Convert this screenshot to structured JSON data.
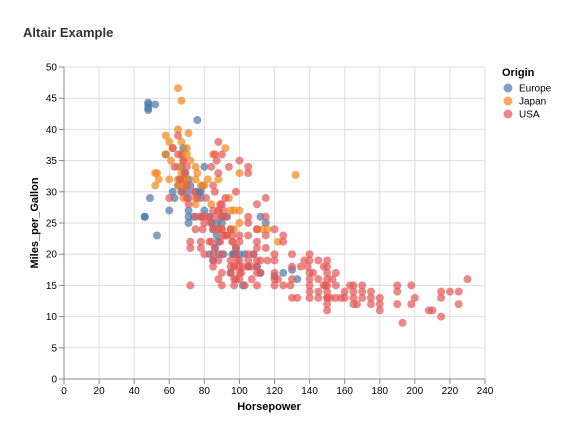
{
  "chart_data": {
    "type": "scatter",
    "title": "Altair Example",
    "xlabel": "Horsepower",
    "ylabel": "Miles_per_Gallon",
    "xlim": [
      0,
      240
    ],
    "ylim": [
      0,
      50
    ],
    "x_ticks": [
      0,
      20,
      40,
      60,
      80,
      100,
      120,
      140,
      160,
      180,
      200,
      220,
      240
    ],
    "y_ticks": [
      0,
      5,
      10,
      15,
      20,
      25,
      30,
      35,
      40,
      45,
      50
    ],
    "grid": true,
    "legend": {
      "title": "Origin",
      "position": "top-right"
    },
    "series": [
      {
        "name": "Europe",
        "color": "#4c78a8",
        "points": [
          [
            46,
            26
          ],
          [
            46,
            26
          ],
          [
            48,
            43.1
          ],
          [
            48,
            43.4
          ],
          [
            48,
            44.3
          ],
          [
            48,
            44
          ],
          [
            49,
            29
          ],
          [
            52,
            44
          ],
          [
            53,
            23
          ],
          [
            58,
            36
          ],
          [
            60,
            27
          ],
          [
            62,
            30
          ],
          [
            63,
            29
          ],
          [
            65,
            31
          ],
          [
            67,
            32
          ],
          [
            67,
            30
          ],
          [
            67,
            34
          ],
          [
            67,
            36
          ],
          [
            68,
            37
          ],
          [
            69,
            33
          ],
          [
            70,
            30
          ],
          [
            71,
            32
          ],
          [
            71,
            29
          ],
          [
            71,
            25
          ],
          [
            71,
            26
          ],
          [
            71,
            27
          ],
          [
            72,
            31
          ],
          [
            74,
            26
          ],
          [
            75,
            30
          ],
          [
            76,
            41.5
          ],
          [
            77,
            30
          ],
          [
            78,
            26
          ],
          [
            78,
            30
          ],
          [
            78,
            29
          ],
          [
            79,
            31
          ],
          [
            80,
            34
          ],
          [
            80,
            27
          ],
          [
            83,
            26
          ],
          [
            83,
            20
          ],
          [
            84,
            25
          ],
          [
            85,
            24
          ],
          [
            85,
            19
          ],
          [
            86,
            21
          ],
          [
            87,
            23
          ],
          [
            87,
            25
          ],
          [
            88,
            22
          ],
          [
            88,
            20
          ],
          [
            90,
            26
          ],
          [
            90,
            25
          ],
          [
            91,
            20
          ],
          [
            93,
            26
          ],
          [
            95,
            17
          ],
          [
            96,
            20
          ],
          [
            97,
            20
          ],
          [
            98,
            21
          ],
          [
            100,
            20
          ],
          [
            102,
            15
          ],
          [
            103,
            20
          ],
          [
            105,
            18
          ],
          [
            108,
            20
          ],
          [
            110,
            18
          ],
          [
            112,
            17
          ],
          [
            112,
            26
          ],
          [
            115,
            25
          ],
          [
            120,
            16.5
          ],
          [
            125,
            17
          ],
          [
            130,
            17.5
          ],
          [
            133,
            16
          ]
        ]
      },
      {
        "name": "Japan",
        "color": "#f58518",
        "points": [
          [
            52,
            31
          ],
          [
            52,
            33
          ],
          [
            53,
            33
          ],
          [
            54,
            32
          ],
          [
            58,
            36
          ],
          [
            58,
            39
          ],
          [
            60,
            38
          ],
          [
            60,
            32
          ],
          [
            61,
            35
          ],
          [
            62,
            37
          ],
          [
            65,
            46.6
          ],
          [
            65,
            40
          ],
          [
            65,
            32
          ],
          [
            65,
            34
          ],
          [
            65,
            31
          ],
          [
            67,
            38
          ],
          [
            67,
            44.6
          ],
          [
            67,
            36
          ],
          [
            67,
            33
          ],
          [
            68,
            32
          ],
          [
            68,
            29
          ],
          [
            68,
            31
          ],
          [
            68,
            35
          ],
          [
            69,
            31
          ],
          [
            70,
            36
          ],
          [
            70,
            32
          ],
          [
            70,
            37
          ],
          [
            71,
            39.4
          ],
          [
            72,
            35
          ],
          [
            75,
            32
          ],
          [
            75,
            29
          ],
          [
            75,
            28
          ],
          [
            75,
            34
          ],
          [
            76,
            33
          ],
          [
            78,
            31
          ],
          [
            80,
            31
          ],
          [
            82,
            32
          ],
          [
            84,
            28
          ],
          [
            85,
            36
          ],
          [
            88,
            32
          ],
          [
            88,
            27
          ],
          [
            88,
            24
          ],
          [
            90,
            24
          ],
          [
            92,
            37
          ],
          [
            94,
            29
          ],
          [
            95,
            27
          ],
          [
            95,
            24
          ],
          [
            96,
            22
          ],
          [
            97,
            27
          ],
          [
            97,
            24
          ],
          [
            97,
            18
          ],
          [
            100,
            27
          ],
          [
            100,
            25
          ],
          [
            100,
            33
          ],
          [
            110,
            24
          ],
          [
            113,
            24
          ],
          [
            116,
            24
          ],
          [
            122,
            22
          ],
          [
            132,
            32.7
          ]
        ]
      },
      {
        "name": "USA",
        "color": "#e45756",
        "points": [
          [
            60,
            29
          ],
          [
            62,
            37
          ],
          [
            63,
            34
          ],
          [
            65,
            39
          ],
          [
            65,
            36
          ],
          [
            66,
            32
          ],
          [
            67,
            30
          ],
          [
            68,
            35
          ],
          [
            69,
            33
          ],
          [
            70,
            34
          ],
          [
            70,
            31
          ],
          [
            70,
            29
          ],
          [
            71,
            28
          ],
          [
            72,
            22
          ],
          [
            72,
            21
          ],
          [
            72,
            15
          ],
          [
            74,
            30
          ],
          [
            75,
            26
          ],
          [
            75,
            24
          ],
          [
            76,
            29
          ],
          [
            78,
            26
          ],
          [
            78,
            22
          ],
          [
            78,
            21
          ],
          [
            79,
            24
          ],
          [
            80,
            25
          ],
          [
            80,
            20
          ],
          [
            80,
            26
          ],
          [
            81,
            29
          ],
          [
            82,
            26
          ],
          [
            83,
            22
          ],
          [
            84,
            34
          ],
          [
            84,
            25
          ],
          [
            84,
            22
          ],
          [
            85,
            27
          ],
          [
            85,
            18
          ],
          [
            85,
            20
          ],
          [
            85,
            24
          ],
          [
            85,
            31
          ],
          [
            85,
            19
          ],
          [
            86,
            21
          ],
          [
            86,
            30
          ],
          [
            86,
            26
          ],
          [
            86,
            36
          ],
          [
            87,
            35
          ],
          [
            88,
            33
          ],
          [
            88,
            27
          ],
          [
            88,
            24
          ],
          [
            88,
            19
          ],
          [
            88,
            16
          ],
          [
            88,
            38
          ],
          [
            89,
            28
          ],
          [
            89,
            22
          ],
          [
            90,
            28
          ],
          [
            90,
            26
          ],
          [
            90,
            24
          ],
          [
            90,
            20
          ],
          [
            90,
            17
          ],
          [
            90,
            15
          ],
          [
            90,
            36
          ],
          [
            91,
            27
          ],
          [
            91,
            23
          ],
          [
            92,
            26
          ],
          [
            92,
            29
          ],
          [
            92,
            23
          ],
          [
            93,
            23
          ],
          [
            94,
            34
          ],
          [
            95,
            24
          ],
          [
            95,
            18
          ],
          [
            95,
            19
          ],
          [
            95,
            17
          ],
          [
            96,
            22
          ],
          [
            96,
            23
          ],
          [
            97,
            15
          ],
          [
            97,
            18
          ],
          [
            97,
            16
          ],
          [
            98,
            16
          ],
          [
            98,
            30
          ],
          [
            98,
            20
          ],
          [
            98,
            21
          ],
          [
            99,
            19
          ],
          [
            100,
            19
          ],
          [
            100,
            18
          ],
          [
            100,
            17
          ],
          [
            100,
            16
          ],
          [
            100,
            23
          ],
          [
            100,
            22
          ],
          [
            100,
            35
          ],
          [
            101,
            17
          ],
          [
            102,
            18
          ],
          [
            103,
            15
          ],
          [
            105,
            19
          ],
          [
            105,
            20
          ],
          [
            105,
            18
          ],
          [
            105,
            34
          ],
          [
            105,
            33
          ],
          [
            105,
            26
          ],
          [
            105,
            23
          ],
          [
            105,
            25
          ],
          [
            107,
            16
          ],
          [
            107,
            18
          ],
          [
            108,
            20
          ],
          [
            110,
            19
          ],
          [
            110,
            18
          ],
          [
            110,
            17
          ],
          [
            110,
            22
          ],
          [
            110,
            24
          ],
          [
            110,
            21
          ],
          [
            110,
            15
          ],
          [
            110,
            28
          ],
          [
            112,
            19
          ],
          [
            112,
            17
          ],
          [
            115,
            21
          ],
          [
            115,
            23
          ],
          [
            115,
            26
          ],
          [
            115,
            29
          ],
          [
            116,
            19
          ],
          [
            120,
            19
          ],
          [
            120,
            20
          ],
          [
            120,
            17
          ],
          [
            120,
            16
          ],
          [
            120,
            15
          ],
          [
            120,
            24
          ],
          [
            122,
            16
          ],
          [
            125,
            22
          ],
          [
            125,
            15
          ],
          [
            125,
            23
          ],
          [
            129,
            15
          ],
          [
            130,
            18
          ],
          [
            130,
            20
          ],
          [
            130,
            16
          ],
          [
            130,
            13
          ],
          [
            133,
            13
          ],
          [
            135,
            18
          ],
          [
            137,
            19
          ],
          [
            139,
            18
          ],
          [
            140,
            20
          ],
          [
            140,
            17
          ],
          [
            140,
            16
          ],
          [
            140,
            14
          ],
          [
            140,
            15
          ],
          [
            140,
            13
          ],
          [
            140,
            19
          ],
          [
            142,
            17
          ],
          [
            145,
            16
          ],
          [
            145,
            14
          ],
          [
            145,
            13
          ],
          [
            145,
            19
          ],
          [
            148,
            18
          ],
          [
            148,
            15
          ],
          [
            149,
            15
          ],
          [
            150,
            17
          ],
          [
            150,
            16
          ],
          [
            150,
            15
          ],
          [
            150,
            14
          ],
          [
            150,
            13
          ],
          [
            150,
            12
          ],
          [
            150,
            11
          ],
          [
            150,
            19
          ],
          [
            150,
            18
          ],
          [
            150,
            13
          ],
          [
            152,
            13
          ],
          [
            153,
            16
          ],
          [
            155,
            17
          ],
          [
            155,
            15
          ],
          [
            155,
            13
          ],
          [
            158,
            13
          ],
          [
            160,
            14
          ],
          [
            160,
            13
          ],
          [
            163,
            15
          ],
          [
            165,
            12
          ],
          [
            165,
            13
          ],
          [
            165,
            14
          ],
          [
            165,
            15
          ],
          [
            167,
            12
          ],
          [
            170,
            13
          ],
          [
            170,
            14
          ],
          [
            170,
            15
          ],
          [
            175,
            12
          ],
          [
            175,
            13
          ],
          [
            175,
            14
          ],
          [
            180,
            12
          ],
          [
            180,
            13
          ],
          [
            180,
            11
          ],
          [
            190,
            15
          ],
          [
            190,
            14
          ],
          [
            190,
            12
          ],
          [
            193,
            9
          ],
          [
            198,
            15
          ],
          [
            198,
            12
          ],
          [
            200,
            13
          ],
          [
            208,
            11
          ],
          [
            210,
            11
          ],
          [
            215,
            14
          ],
          [
            215,
            13
          ],
          [
            215,
            10
          ],
          [
            220,
            14
          ],
          [
            225,
            14
          ],
          [
            225,
            12
          ],
          [
            230,
            16
          ]
        ]
      }
    ]
  }
}
